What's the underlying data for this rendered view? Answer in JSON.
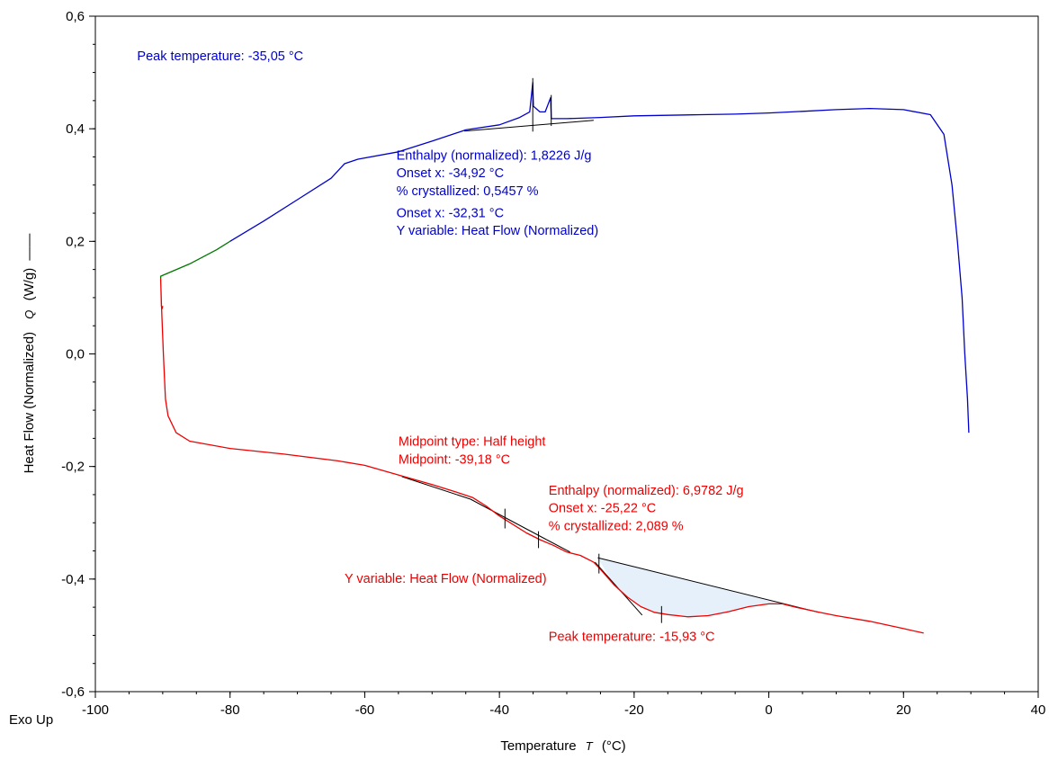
{
  "chart_data": {
    "type": "line",
    "xlabel_text": "Temperature",
    "xlabel_symbol": "T",
    "xlabel_unit": "(°C)",
    "ylabel_text": "Heat Flow (Normalized)",
    "ylabel_symbol": "Q",
    "ylabel_unit": "(W/g)",
    "corner_label": "Exo Up",
    "xlim": [
      -100,
      40
    ],
    "ylim": [
      -0.6,
      0.6
    ],
    "x_ticks": [
      -100,
      -80,
      -60,
      -40,
      -20,
      0,
      20,
      40
    ],
    "x_tick_labels": [
      "-100",
      "-80",
      "-60",
      "-40",
      "-20",
      "0",
      "20",
      "40"
    ],
    "y_ticks": [
      -0.6,
      -0.4,
      -0.2,
      0.0,
      0.2,
      0.4,
      0.6
    ],
    "y_tick_labels": [
      "-0,6",
      "-0,4",
      "-0,2",
      "0,0",
      "0,2",
      "0,4",
      "0,6"
    ],
    "grid": false,
    "colors": {
      "cooling": "#0000cc",
      "isothermal": "#007700",
      "heating": "#ee0000",
      "baseline": "#000000",
      "area_fill": "#e6f0fa"
    },
    "series": [
      {
        "color": "#0000cc",
        "points": [
          [
            -80,
            0.2
          ],
          [
            -75,
            0.236
          ],
          [
            -70,
            0.274
          ],
          [
            -65,
            0.312
          ],
          [
            -63,
            0.338
          ],
          [
            -61,
            0.346
          ],
          [
            -55,
            0.359
          ],
          [
            -50,
            0.378
          ],
          [
            -45,
            0.398
          ],
          [
            -40,
            0.407
          ],
          [
            -37,
            0.42
          ],
          [
            -35.5,
            0.43
          ],
          [
            -35.05,
            0.482
          ],
          [
            -34.95,
            0.44
          ],
          [
            -34,
            0.43
          ],
          [
            -33.2,
            0.43
          ],
          [
            -32.4,
            0.455
          ],
          [
            -32.3,
            0.418
          ],
          [
            -30,
            0.418
          ],
          [
            -25,
            0.42
          ],
          [
            -20,
            0.423
          ],
          [
            -10,
            0.425
          ],
          [
            -5,
            0.426
          ],
          [
            0,
            0.428
          ],
          [
            5,
            0.431
          ],
          [
            10,
            0.434
          ],
          [
            15,
            0.436
          ],
          [
            20,
            0.434
          ],
          [
            24,
            0.425
          ],
          [
            26,
            0.39
          ],
          [
            27.2,
            0.3
          ],
          [
            28,
            0.2
          ],
          [
            28.7,
            0.1
          ],
          [
            29.1,
            0.0
          ],
          [
            29.5,
            -0.08
          ],
          [
            29.7,
            -0.14
          ]
        ]
      },
      {
        "color": "#007700",
        "points": [
          [
            -90.3,
            0.133
          ],
          [
            -90.3,
            0.138
          ],
          [
            -86,
            0.16
          ],
          [
            -82,
            0.185
          ],
          [
            -80,
            0.2
          ]
        ]
      },
      {
        "color": "#ee0000",
        "points": [
          [
            -90,
            0.085
          ],
          [
            -90.1,
            0.08
          ],
          [
            -90.2,
            0.085
          ],
          [
            -90.3,
            0.133
          ],
          [
            -90.2,
            0.09
          ],
          [
            -89.9,
            0.0
          ],
          [
            -89.6,
            -0.08
          ],
          [
            -89.2,
            -0.11
          ],
          [
            -88,
            -0.14
          ],
          [
            -86,
            -0.155
          ],
          [
            -80,
            -0.168
          ],
          [
            -72,
            -0.178
          ],
          [
            -64,
            -0.19
          ],
          [
            -60,
            -0.198
          ],
          [
            -55,
            -0.215
          ],
          [
            -50,
            -0.232
          ],
          [
            -46,
            -0.247
          ],
          [
            -44,
            -0.255
          ],
          [
            -42,
            -0.27
          ],
          [
            -40,
            -0.288
          ],
          [
            -38,
            -0.303
          ],
          [
            -36,
            -0.318
          ],
          [
            -34,
            -0.33
          ],
          [
            -32,
            -0.34
          ],
          [
            -30,
            -0.352
          ],
          [
            -28,
            -0.358
          ],
          [
            -26,
            -0.37
          ],
          [
            -25.2,
            -0.38
          ],
          [
            -23,
            -0.41
          ],
          [
            -21,
            -0.432
          ],
          [
            -19,
            -0.449
          ],
          [
            -17,
            -0.459
          ],
          [
            -15,
            -0.463
          ],
          [
            -12,
            -0.467
          ],
          [
            -9,
            -0.465
          ],
          [
            -6,
            -0.458
          ],
          [
            -3,
            -0.449
          ],
          [
            0,
            -0.444
          ],
          [
            2,
            -0.444
          ],
          [
            4,
            -0.45
          ],
          [
            7.5,
            -0.459
          ],
          [
            10,
            -0.465
          ],
          [
            15,
            -0.475
          ],
          [
            20,
            -0.488
          ],
          [
            23,
            -0.496
          ]
        ]
      }
    ],
    "analysis_lines": [
      {
        "color": "#000000",
        "points": [
          [
            -45.2,
            0.396
          ],
          [
            -26,
            0.415
          ]
        ]
      },
      {
        "color": "#000000",
        "points": [
          [
            -54.5,
            -0.218
          ],
          [
            -44.3,
            -0.258
          ]
        ]
      },
      {
        "color": "#000000",
        "points": [
          [
            -44.3,
            -0.258
          ],
          [
            -33,
            -0.33
          ]
        ]
      },
      {
        "color": "#000000",
        "points": [
          [
            -33,
            -0.33
          ],
          [
            -29.5,
            -0.352
          ]
        ]
      },
      {
        "color": "#000000",
        "points": [
          [
            -25.4,
            -0.362
          ],
          [
            7.4,
            -0.459
          ]
        ]
      },
      {
        "color": "#000000",
        "points": [
          [
            -25.8,
            -0.37
          ],
          [
            -18.8,
            -0.464
          ]
        ]
      }
    ],
    "filled_peak": {
      "color": "#e6f0fa",
      "points": [
        [
          -25.4,
          -0.362
        ],
        [
          -23,
          -0.41
        ],
        [
          -21,
          -0.432
        ],
        [
          -19,
          -0.449
        ],
        [
          -17,
          -0.459
        ],
        [
          -15,
          -0.463
        ],
        [
          -12,
          -0.467
        ],
        [
          -9,
          -0.465
        ],
        [
          -6,
          -0.458
        ],
        [
          -3,
          -0.449
        ],
        [
          0,
          -0.444
        ],
        [
          2,
          -0.444
        ],
        [
          4,
          -0.45
        ],
        [
          7.4,
          -0.459
        ]
      ]
    },
    "markers": [
      {
        "x": -35.05,
        "y1": 0.395,
        "y2": 0.49
      },
      {
        "x": -32.31,
        "y1": 0.405,
        "y2": 0.46
      },
      {
        "x": -39.18,
        "y1": -0.275,
        "y2": -0.31
      },
      {
        "x": -34.2,
        "y1": -0.315,
        "y2": -0.345
      },
      {
        "x": -25.22,
        "y1": -0.355,
        "y2": -0.39
      },
      {
        "x": -15.93,
        "y1": -0.448,
        "y2": -0.478
      }
    ],
    "annotations": [
      {
        "text": "Peak temperature: -35,05 °C",
        "x": -93.8,
        "y": 0.522,
        "color": "#0000cc"
      },
      {
        "text": "Enthalpy (normalized): 1,8226 J/g",
        "x": -55.3,
        "y": 0.345,
        "color": "#0000cc"
      },
      {
        "text": "Onset x: -34,92 °C",
        "x": -55.3,
        "y": 0.314,
        "color": "#0000cc"
      },
      {
        "text": "% crystallized: 0,5457 %",
        "x": -55.3,
        "y": 0.282,
        "color": "#0000cc"
      },
      {
        "text": "Onset x: -32,31 °C",
        "x": -55.3,
        "y": 0.243,
        "color": "#0000cc"
      },
      {
        "text": "Y variable: Heat Flow (Normalized)",
        "x": -55.3,
        "y": 0.212,
        "color": "#0000cc"
      },
      {
        "text": "Midpoint type: Half height",
        "x": -55.0,
        "y": -0.163,
        "color": "#ee0000"
      },
      {
        "text": "Midpoint: -39,18 °C",
        "x": -55.0,
        "y": -0.195,
        "color": "#ee0000"
      },
      {
        "text": "Enthalpy (normalized): 6,9782 J/g",
        "x": -32.7,
        "y": -0.25,
        "color": "#ee0000"
      },
      {
        "text": "Onset x: -25,22 °C",
        "x": -32.7,
        "y": -0.281,
        "color": "#ee0000"
      },
      {
        "text": "% crystallized: 2,089 %",
        "x": -32.7,
        "y": -0.313,
        "color": "#ee0000"
      },
      {
        "text": "Y variable: Heat Flow (Normalized)",
        "x": -63.0,
        "y": -0.407,
        "color": "#ee0000"
      },
      {
        "text": "Peak temperature: -15,93 °C",
        "x": -32.7,
        "y": -0.51,
        "color": "#ee0000"
      }
    ]
  }
}
